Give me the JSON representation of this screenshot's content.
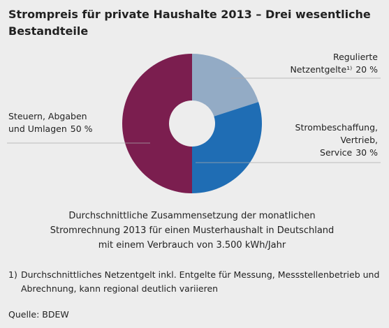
{
  "chart_data": {
    "type": "donut",
    "title": [
      "Strompreis für private Haushalte 2013 – Drei wesentliche",
      "Bestandteile"
    ],
    "subtitle": [
      "Durchschnittliche Zusammensetzung der monatlichen",
      "Stromrechnung 2013 für einen Musterhaushalt in Deutschland",
      "mit einem Verbrauch von 3.500 kWh/Jahr"
    ],
    "categories": [
      "Regulierte\nNetzentgelte¹⁾",
      "Strombeschaffung,\nVertrieb,\nService",
      "Steuern, Abgaben\nund Umlagen"
    ],
    "values": [
      20,
      30,
      50
    ],
    "value_labels": [
      "20 %",
      "30 %",
      "50 %"
    ],
    "colors": [
      "#93abc5",
      "#1f6db4",
      "#7b1e4f"
    ],
    "footnote": {
      "marker": "1)",
      "lines": [
        "Durchschnittliches Netzentgelt inkl. Entgelte für Messung, Messstellenbetrieb und",
        "Abrechnung, kann regional deutlich variieren"
      ]
    },
    "source": "Quelle: BDEW"
  }
}
